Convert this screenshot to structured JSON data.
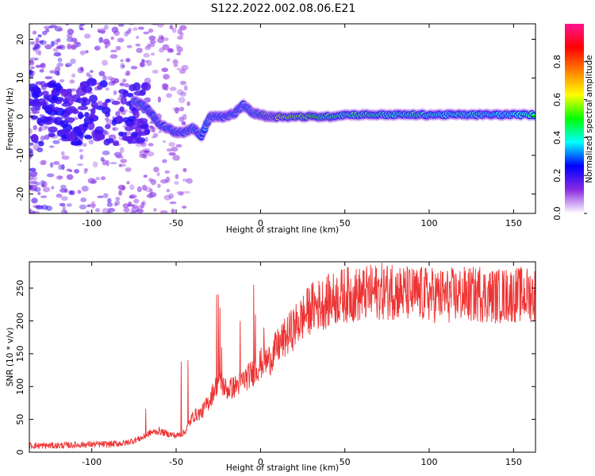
{
  "title": "S122.2022.002.08.06.E21",
  "chart_data": [
    {
      "type": "heatmap",
      "xlabel": "Height of straight line (km)",
      "ylabel": "Frequency (Hz)",
      "xlim": [
        -137,
        163
      ],
      "ylim": [
        -25,
        24
      ],
      "xticks": [
        -100,
        -50,
        0,
        50,
        100,
        150
      ],
      "yticks": [
        -20,
        -10,
        0,
        10,
        20
      ],
      "colorbar": {
        "label": "Normalized spectral amplitude",
        "range": [
          0,
          1
        ],
        "ticks": [
          0.0,
          0.2,
          0.4,
          0.6,
          0.8
        ],
        "colormap": [
          "#ffffff",
          "#8a2be2",
          "#0000ff",
          "#00ffff",
          "#00ff00",
          "#ffff00",
          "#ff8000",
          "#ff0000",
          "#ff1493"
        ]
      },
      "ridge": {
        "x": [
          -75,
          -70,
          -65,
          -60,
          -55,
          -50,
          -45,
          -40,
          -35,
          -30,
          -25,
          -20,
          -15,
          -10,
          -5,
          0,
          5,
          10,
          20,
          30,
          40,
          50,
          60,
          70,
          80,
          90,
          100,
          110,
          120,
          130,
          140,
          150,
          163
        ],
        "freq": [
          4,
          3,
          1,
          -2,
          -3,
          -4,
          -4,
          -3,
          -5,
          0,
          0,
          0,
          1,
          3,
          1,
          0.5,
          0,
          0,
          0,
          0,
          0,
          0.5,
          0.5,
          0.5,
          0.5,
          0.5,
          0.5,
          0.5,
          0.5,
          0.5,
          0.5,
          0.5,
          0.5
        ],
        "amplitude": [
          0.4,
          0.35,
          0.3,
          0.35,
          0.4,
          0.35,
          0.35,
          0.35,
          0.35,
          0.4,
          0.35,
          0.35,
          0.4,
          0.35,
          0.45,
          0.6,
          0.9,
          0.9,
          0.8,
          0.75,
          0.6,
          0.55,
          0.6,
          0.55,
          0.5,
          0.55,
          0.5,
          0.45,
          0.5,
          0.5,
          0.45,
          0.45,
          0.5
        ]
      }
    },
    {
      "type": "line",
      "xlabel": "Height of straight line (km)",
      "ylabel": "SNR (10 * v/v)",
      "xlim": [
        -137,
        163
      ],
      "ylim": [
        0,
        290
      ],
      "xticks": [
        -100,
        -50,
        0,
        50,
        100,
        150
      ],
      "yticks": [
        0,
        50,
        100,
        150,
        200,
        250
      ],
      "color": "#ee3333",
      "series": [
        {
          "x": [
            -137,
            -120,
            -100,
            -90,
            -80,
            -75,
            -70,
            -65,
            -60,
            -55,
            -50,
            -45,
            -40,
            -35,
            -30,
            -25,
            -20,
            -15,
            -10,
            -5,
            0,
            5,
            10,
            15,
            20,
            25,
            30,
            40,
            50,
            60,
            70,
            80,
            90,
            100,
            110,
            120,
            130,
            140,
            150,
            163
          ],
          "y": [
            10,
            10,
            12,
            12,
            14,
            18,
            22,
            30,
            32,
            28,
            25,
            30,
            55,
            60,
            80,
            110,
            95,
            100,
            110,
            120,
            135,
            140,
            160,
            175,
            190,
            205,
            220,
            230,
            240,
            240,
            245,
            245,
            240,
            240,
            238,
            240,
            240,
            238,
            240,
            240
          ],
          "spikes": [
            {
              "x": -68,
              "y": 66
            },
            {
              "x": -47,
              "y": 138
            },
            {
              "x": -43,
              "y": 140
            },
            {
              "x": -26,
              "y": 240
            },
            {
              "x": -25,
              "y": 240
            },
            {
              "x": -24,
              "y": 220
            },
            {
              "x": -23,
              "y": 160
            },
            {
              "x": -18,
              "y": 110
            },
            {
              "x": -12,
              "y": 200
            },
            {
              "x": -4,
              "y": 255
            },
            {
              "x": -3,
              "y": 210
            },
            {
              "x": 2,
              "y": 190
            },
            {
              "x": 78,
              "y": 285
            },
            {
              "x": 95,
              "y": 280
            },
            {
              "x": 130,
              "y": 282
            },
            {
              "x": 150,
              "y": 270
            }
          ]
        }
      ]
    }
  ]
}
